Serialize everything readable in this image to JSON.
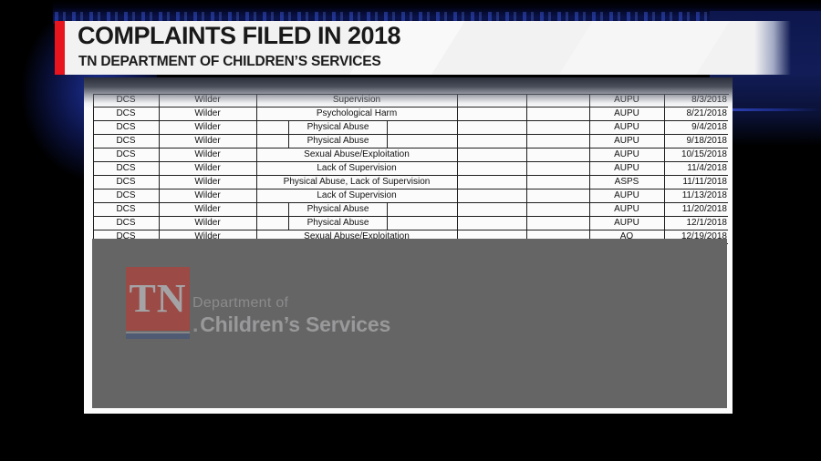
{
  "banner": {
    "title": "COMPLAINTS FILED IN 2018",
    "subtitle": "TN DEPARTMENT OF CHILDREN’S SERVICES"
  },
  "table": {
    "rows": [
      {
        "agency": "DCS",
        "facility": "Wilder",
        "complaint": "Supervision",
        "style": "wide",
        "code": "AUPU",
        "date": "8/3/2018"
      },
      {
        "agency": "DCS",
        "facility": "Wilder",
        "complaint": "Psychological Harm",
        "style": "wide",
        "code": "AUPU",
        "date": "8/21/2018"
      },
      {
        "agency": "DCS",
        "facility": "Wilder",
        "complaint": "Physical Abuse",
        "style": "boxed",
        "code": "AUPU",
        "date": "9/4/2018"
      },
      {
        "agency": "DCS",
        "facility": "Wilder",
        "complaint": "Physical Abuse",
        "style": "boxed",
        "code": "AUPU",
        "date": "9/18/2018"
      },
      {
        "agency": "DCS",
        "facility": "Wilder",
        "complaint": "Sexual Abuse/Exploitation",
        "style": "wide",
        "code": "AUPU",
        "date": "10/15/2018"
      },
      {
        "agency": "DCS",
        "facility": "Wilder",
        "complaint": "Lack of Supervision",
        "style": "wide",
        "code": "AUPU",
        "date": "11/4/2018"
      },
      {
        "agency": "DCS",
        "facility": "Wilder",
        "complaint": "Physical Abuse, Lack of Supervision",
        "style": "wide",
        "code": "ASPS",
        "date": "11/11/2018"
      },
      {
        "agency": "DCS",
        "facility": "Wilder",
        "complaint": "Lack of Supervision",
        "style": "wide",
        "code": "AUPU",
        "date": "11/13/2018"
      },
      {
        "agency": "DCS",
        "facility": "Wilder",
        "complaint": "Physical Abuse",
        "style": "boxed",
        "code": "AUPU",
        "date": "11/20/2018"
      },
      {
        "agency": "DCS",
        "facility": "Wilder",
        "complaint": "Physical Abuse",
        "style": "boxed",
        "code": "AUPU",
        "date": "12/1/2018"
      },
      {
        "agency": "DCS",
        "facility": "Wilder",
        "complaint": "Sexual Abuse/Exploitation",
        "style": "wide",
        "code": "AO",
        "date": "12/19/2018"
      }
    ]
  },
  "logo": {
    "tn": "TN",
    "period": ".",
    "dept_line1": "Department of",
    "dept_line2": "Children’s Services"
  },
  "colors": {
    "accent_red": "#e8141e",
    "navy_background": "#0c164a",
    "overlay_gray": "#656565",
    "logo_red": "#9b4a45",
    "logo_bar_blue": "#4f5a73",
    "table_border": "#1f1f1f"
  }
}
